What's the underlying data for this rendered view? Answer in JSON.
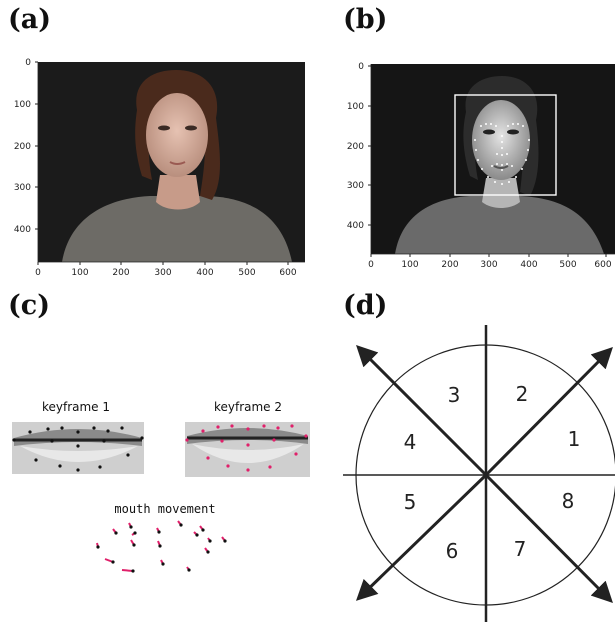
{
  "panels": {
    "a": {
      "label": "(a)",
      "x_ticks": [
        "0",
        "100",
        "200",
        "300",
        "400",
        "500",
        "600"
      ],
      "y_ticks": [
        "0",
        "100",
        "200",
        "300",
        "400"
      ]
    },
    "b": {
      "label": "(b)",
      "x_ticks": [
        "0",
        "100",
        "200",
        "300",
        "400",
        "500",
        "600"
      ],
      "y_ticks": [
        "0",
        "100",
        "200",
        "300",
        "400"
      ]
    },
    "c": {
      "label": "(c)",
      "keyframe1": "keyframe 1",
      "keyframe2": "keyframe 2",
      "movement": "mouth movement"
    },
    "d": {
      "label": "(d)",
      "sectors": [
        "1",
        "2",
        "3",
        "4",
        "5",
        "6",
        "7",
        "8"
      ]
    }
  },
  "colors": {
    "landmark_black": "#111111",
    "landmark_magenta": "#e0206a",
    "face_box": "#ffffff"
  }
}
